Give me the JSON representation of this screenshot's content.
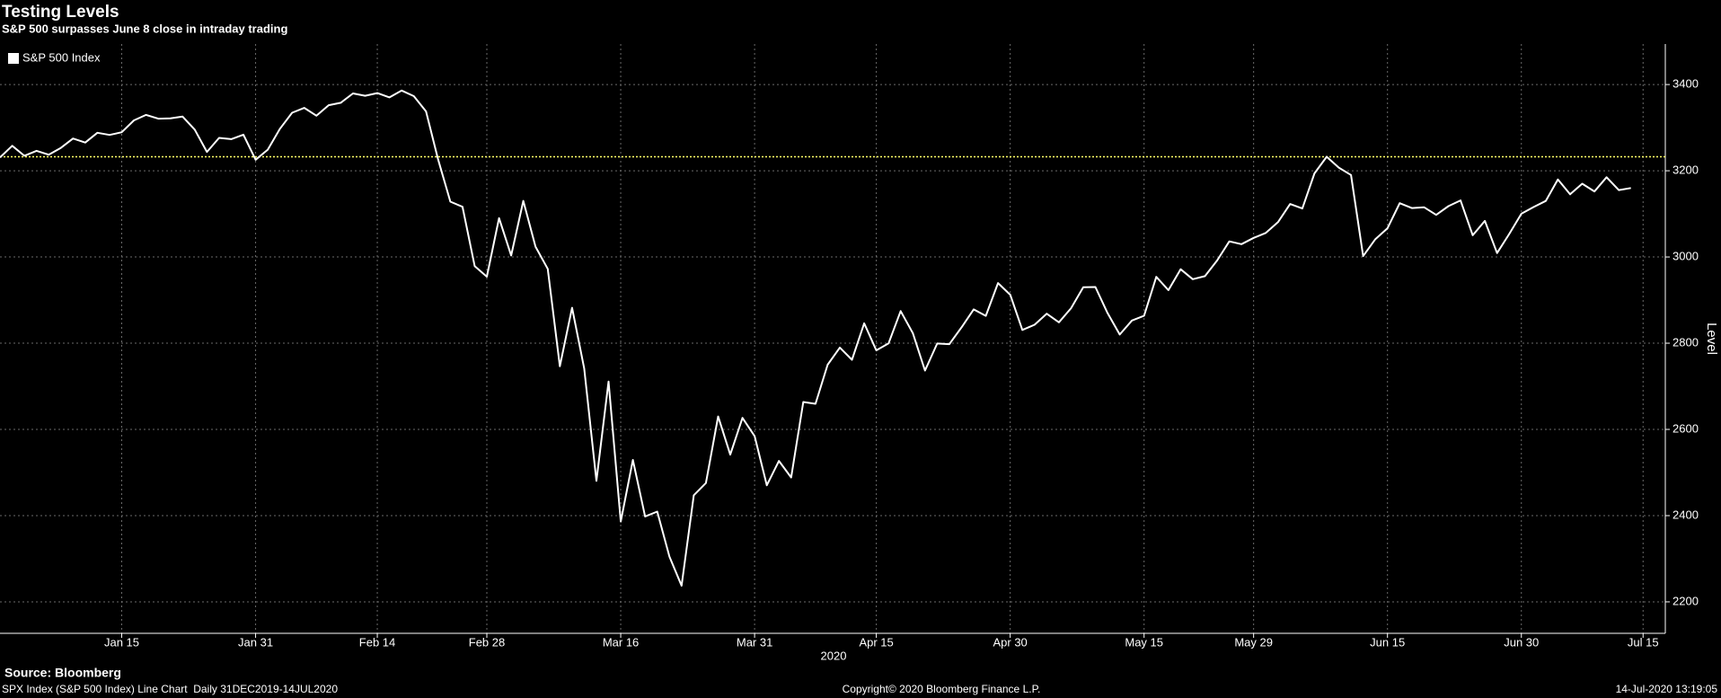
{
  "chart_data": {
    "type": "line",
    "title": "Testing Levels",
    "subtitle": "S&P 500 surpasses June 8 close in intraday trading",
    "x_axis_label": "2020",
    "y_axis_label": "Level",
    "source": "Source: Bloomberg",
    "footer_left": "SPX Index (S&P 500 Index) Line Chart  Daily 31DEC2019-14JUL2020",
    "copyright": "Copyright© 2020 Bloomberg Finance L.P.",
    "timestamp": "14-Jul-2020 13:19:05",
    "legend": "upper left",
    "grid": true,
    "x": [
      "2019-12-31",
      "2020-01-02",
      "2020-01-03",
      "2020-01-06",
      "2020-01-07",
      "2020-01-08",
      "2020-01-09",
      "2020-01-10",
      "2020-01-13",
      "2020-01-14",
      "2020-01-15",
      "2020-01-16",
      "2020-01-17",
      "2020-01-21",
      "2020-01-22",
      "2020-01-23",
      "2020-01-24",
      "2020-01-27",
      "2020-01-28",
      "2020-01-29",
      "2020-01-30",
      "2020-01-31",
      "2020-02-03",
      "2020-02-04",
      "2020-02-05",
      "2020-02-06",
      "2020-02-07",
      "2020-02-10",
      "2020-02-11",
      "2020-02-12",
      "2020-02-13",
      "2020-02-14",
      "2020-02-18",
      "2020-02-19",
      "2020-02-20",
      "2020-02-21",
      "2020-02-24",
      "2020-02-25",
      "2020-02-26",
      "2020-02-27",
      "2020-02-28",
      "2020-03-02",
      "2020-03-03",
      "2020-03-04",
      "2020-03-05",
      "2020-03-06",
      "2020-03-09",
      "2020-03-10",
      "2020-03-11",
      "2020-03-12",
      "2020-03-13",
      "2020-03-16",
      "2020-03-17",
      "2020-03-18",
      "2020-03-19",
      "2020-03-20",
      "2020-03-23",
      "2020-03-24",
      "2020-03-25",
      "2020-03-26",
      "2020-03-27",
      "2020-03-30",
      "2020-03-31",
      "2020-04-01",
      "2020-04-02",
      "2020-04-03",
      "2020-04-06",
      "2020-04-07",
      "2020-04-08",
      "2020-04-09",
      "2020-04-13",
      "2020-04-14",
      "2020-04-15",
      "2020-04-16",
      "2020-04-17",
      "2020-04-20",
      "2020-04-21",
      "2020-04-22",
      "2020-04-23",
      "2020-04-24",
      "2020-04-27",
      "2020-04-28",
      "2020-04-29",
      "2020-04-30",
      "2020-05-01",
      "2020-05-04",
      "2020-05-05",
      "2020-05-06",
      "2020-05-07",
      "2020-05-08",
      "2020-05-11",
      "2020-05-12",
      "2020-05-13",
      "2020-05-14",
      "2020-05-15",
      "2020-05-18",
      "2020-05-19",
      "2020-05-20",
      "2020-05-21",
      "2020-05-22",
      "2020-05-26",
      "2020-05-27",
      "2020-05-28",
      "2020-05-29",
      "2020-06-01",
      "2020-06-02",
      "2020-06-03",
      "2020-06-04",
      "2020-06-05",
      "2020-06-08",
      "2020-06-09",
      "2020-06-10",
      "2020-06-11",
      "2020-06-12",
      "2020-06-15",
      "2020-06-16",
      "2020-06-17",
      "2020-06-18",
      "2020-06-19",
      "2020-06-22",
      "2020-06-23",
      "2020-06-24",
      "2020-06-25",
      "2020-06-26",
      "2020-06-29",
      "2020-06-30",
      "2020-07-01",
      "2020-07-02",
      "2020-07-06",
      "2020-07-07",
      "2020-07-08",
      "2020-07-09",
      "2020-07-10",
      "2020-07-13",
      "2020-07-14"
    ],
    "series": [
      {
        "name": "S&P 500 Index",
        "color": "#ffffff",
        "values": [
          3230.78,
          3257.85,
          3234.85,
          3246.28,
          3237.18,
          3253.05,
          3274.7,
          3265.35,
          3288.13,
          3283.15,
          3289.29,
          3316.81,
          3329.62,
          3320.79,
          3321.75,
          3325.54,
          3295.47,
          3243.63,
          3276.24,
          3273.4,
          3283.66,
          3225.52,
          3248.92,
          3297.59,
          3334.69,
          3345.78,
          3327.71,
          3352.09,
          3357.75,
          3379.45,
          3373.94,
          3380.16,
          3370.29,
          3386.15,
          3373.23,
          3337.75,
          3225.89,
          3128.21,
          3116.39,
          2978.76,
          2954.22,
          3090.23,
          3003.37,
          3130.12,
          3023.94,
          2972.37,
          2746.56,
          2882.23,
          2741.38,
          2480.64,
          2711.02,
          2386.13,
          2529.19,
          2398.1,
          2409.39,
          2304.92,
          2237.4,
          2447.33,
          2475.56,
          2630.07,
          2541.47,
          2626.65,
          2584.59,
          2470.5,
          2526.9,
          2488.65,
          2663.68,
          2659.41,
          2749.98,
          2789.82,
          2761.63,
          2846.06,
          2783.36,
          2799.55,
          2874.56,
          2823.16,
          2736.56,
          2799.31,
          2797.8,
          2836.74,
          2878.48,
          2863.39,
          2939.51,
          2912.43,
          2830.71,
          2842.74,
          2868.44,
          2848.42,
          2881.19,
          2929.8,
          2930.32,
          2870.12,
          2820,
          2852.5,
          2863.7,
          2953.91,
          2922.94,
          2971.61,
          2948.51,
          2955.45,
          2991.77,
          3036.13,
          3029.73,
          3044.31,
          3055.73,
          3080.82,
          3122.87,
          3112.35,
          3193.93,
          3232.39,
          3207.18,
          3190.14,
          3002.1,
          3041.31,
          3066.59,
          3124.74,
          3113.49,
          3115.34,
          3097.74,
          3117.86,
          3131.29,
          3050.33,
          3083.76,
          3009.05,
          3053.24,
          3100.29,
          3115.86,
          3130.01,
          3179.72,
          3145.32,
          3169.94,
          3152.05,
          3185.04,
          3155.22,
          3160
        ]
      }
    ],
    "reference_line": {
      "value": 3232.39,
      "color": "#ffff66"
    },
    "xticks": [
      {
        "value": "2020-01-15",
        "label": "Jan 15"
      },
      {
        "value": "2020-01-31",
        "label": "Jan 31"
      },
      {
        "value": "2020-02-14",
        "label": "Feb 14"
      },
      {
        "value": "2020-02-28",
        "label": "Feb 28"
      },
      {
        "value": "2020-03-16",
        "label": "Mar 16"
      },
      {
        "value": "2020-03-31",
        "label": "Mar 31"
      },
      {
        "value": "2020-04-15",
        "label": "Apr 15"
      },
      {
        "value": "2020-04-30",
        "label": "Apr 30"
      },
      {
        "value": "2020-05-15",
        "label": "May 15"
      },
      {
        "value": "2020-05-29",
        "label": "May 29"
      },
      {
        "value": "2020-06-15",
        "label": "Jun 15"
      },
      {
        "value": "2020-06-30",
        "label": "Jun 30"
      },
      {
        "value": "2020-07-15",
        "label": "Jul 15"
      }
    ],
    "ylim": [
      2127,
      3494
    ],
    "yticks": [
      2200,
      2400,
      2600,
      2800,
      3000,
      3200,
      3400
    ]
  }
}
